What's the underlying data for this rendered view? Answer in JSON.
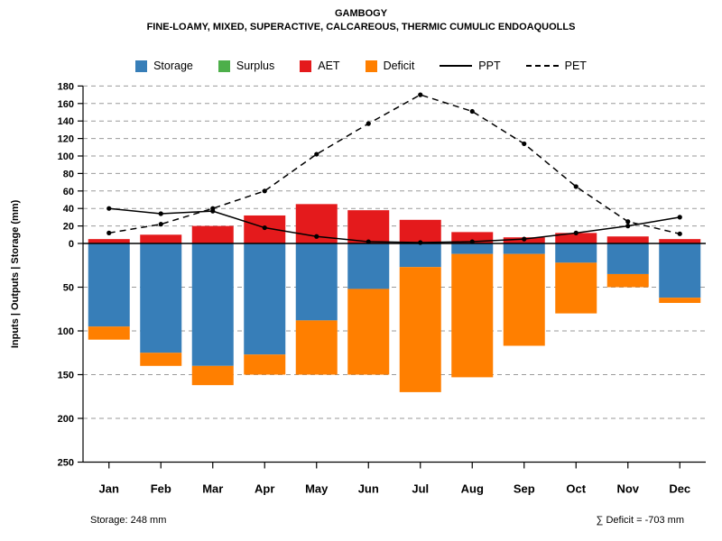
{
  "chart_data": {
    "type": "bar",
    "title": "GAMBOGY",
    "subtitle": "FINE-LOAMY, MIXED, SUPERACTIVE, CALCAREOUS, THERMIC CUMULIC ENDOAQUOLLS",
    "ylabel": "Inputs | Outputs | Storage  (mm)",
    "categories": [
      "Jan",
      "Feb",
      "Mar",
      "Apr",
      "May",
      "Jun",
      "Jul",
      "Aug",
      "Sep",
      "Oct",
      "Nov",
      "Dec"
    ],
    "y_axis": {
      "ticks_above": [
        0,
        20,
        40,
        60,
        80,
        100,
        120,
        140,
        160,
        180
      ],
      "ticks_below": [
        50,
        100,
        150,
        200,
        250
      ],
      "above_max": 180,
      "below_max": 250,
      "grid": "dashed"
    },
    "series": [
      {
        "name": "Storage",
        "color": "#377EB8",
        "direction": "down",
        "values": [
          95,
          125,
          140,
          127,
          88,
          52,
          27,
          12,
          12,
          22,
          35,
          62
        ]
      },
      {
        "name": "Surplus",
        "color": "#4DAF4A",
        "direction": "up",
        "values": [
          0,
          0,
          0,
          0,
          0,
          0,
          0,
          0,
          0,
          0,
          0,
          0
        ]
      },
      {
        "name": "AET",
        "color": "#E41A1C",
        "direction": "up",
        "values": [
          5,
          10,
          20,
          32,
          45,
          38,
          27,
          13,
          7,
          12,
          8,
          5
        ]
      },
      {
        "name": "Deficit",
        "color": "#FF7F00",
        "direction": "down",
        "values": [
          15,
          15,
          22,
          23,
          62,
          98,
          143,
          141,
          105,
          58,
          15,
          6
        ]
      }
    ],
    "lines": [
      {
        "name": "PPT",
        "style": "solid",
        "color": "#000000",
        "values": [
          40,
          34,
          37,
          18,
          8,
          2,
          1,
          2,
          5,
          12,
          20,
          30
        ]
      },
      {
        "name": "PET",
        "style": "dashed",
        "color": "#000000",
        "values": [
          12,
          22,
          40,
          60,
          102,
          137,
          170,
          151,
          114,
          65,
          25,
          11
        ]
      }
    ],
    "legend_order": [
      "Storage",
      "Surplus",
      "AET",
      "Deficit",
      "PPT",
      "PET"
    ],
    "annotations": {
      "storage": "Storage: 248 mm",
      "deficit_sum": "∑ Deficit = -703 mm"
    }
  }
}
